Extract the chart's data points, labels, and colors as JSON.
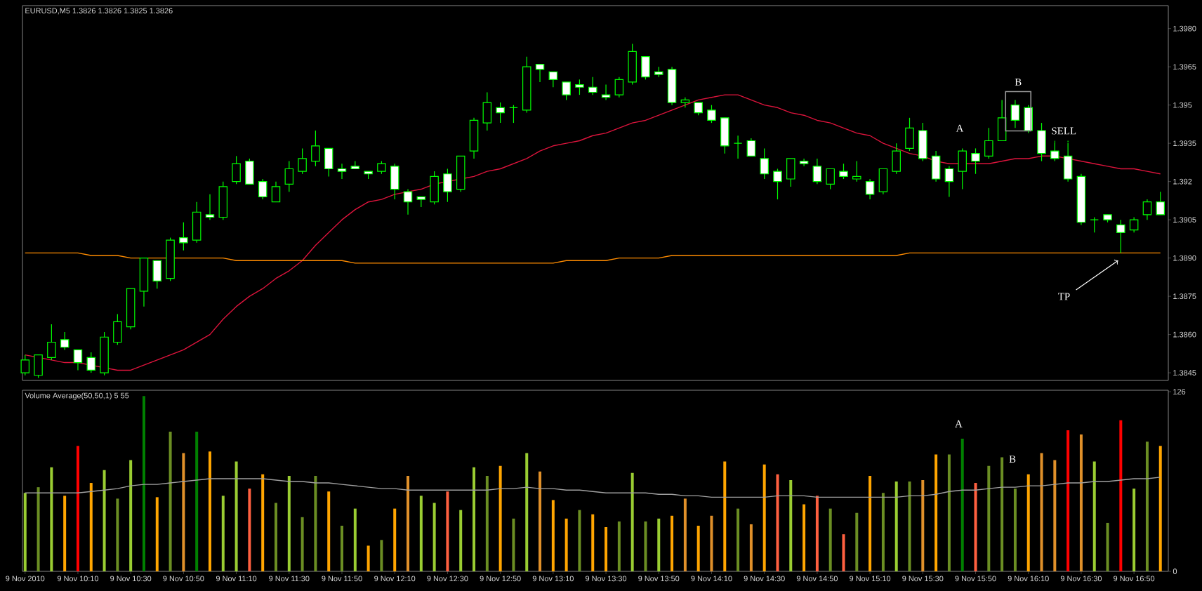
{
  "chart_data": [
    {
      "type": "candlestick",
      "title": "EURUSD,M5 1.3826 1.3826 1.3825 1.3826",
      "x": [
        "2010-11-09T09:50",
        "2010-11-09T09:55",
        "2010-11-09T10:00",
        "2010-11-09T10:05",
        "2010-11-09T10:10",
        "2010-11-09T10:15",
        "2010-11-09T10:20",
        "2010-11-09T10:25",
        "2010-11-09T10:30",
        "2010-11-09T10:35",
        "2010-11-09T10:40",
        "2010-11-09T10:45",
        "2010-11-09T10:50",
        "2010-11-09T10:55",
        "2010-11-09T11:00",
        "2010-11-09T11:05",
        "2010-11-09T11:10",
        "2010-11-09T11:15",
        "2010-11-09T11:20",
        "2010-11-09T11:25",
        "2010-11-09T11:30",
        "2010-11-09T11:35",
        "2010-11-09T11:40",
        "2010-11-09T11:45",
        "2010-11-09T11:50",
        "2010-11-09T11:55",
        "2010-11-09T12:00",
        "2010-11-09T12:05",
        "2010-11-09T12:10",
        "2010-11-09T12:15",
        "2010-11-09T12:20",
        "2010-11-09T12:25",
        "2010-11-09T12:30",
        "2010-11-09T12:35",
        "2010-11-09T12:40",
        "2010-11-09T12:45",
        "2010-11-09T12:50",
        "2010-11-09T12:55",
        "2010-11-09T13:00",
        "2010-11-09T13:05",
        "2010-11-09T13:10",
        "2010-11-09T13:15",
        "2010-11-09T13:20",
        "2010-11-09T13:25",
        "2010-11-09T13:30",
        "2010-11-09T13:35",
        "2010-11-09T13:40",
        "2010-11-09T13:45",
        "2010-11-09T13:50",
        "2010-11-09T13:55",
        "2010-11-09T14:00",
        "2010-11-09T14:05",
        "2010-11-09T14:10",
        "2010-11-09T14:15",
        "2010-11-09T14:20",
        "2010-11-09T14:25",
        "2010-11-09T14:30",
        "2010-11-09T14:35",
        "2010-11-09T14:40",
        "2010-11-09T14:45",
        "2010-11-09T14:50",
        "2010-11-09T14:55",
        "2010-11-09T15:00",
        "2010-11-09T15:05",
        "2010-11-09T15:10",
        "2010-11-09T15:15",
        "2010-11-09T15:20",
        "2010-11-09T15:25",
        "2010-11-09T15:30",
        "2010-11-09T15:35",
        "2010-11-09T15:40",
        "2010-11-09T15:45",
        "2010-11-09T15:50",
        "2010-11-09T15:55",
        "2010-11-09T16:00",
        "2010-11-09T16:05",
        "2010-11-09T16:10",
        "2010-11-09T16:15",
        "2010-11-09T16:20",
        "2010-11-09T16:25",
        "2010-11-09T16:30",
        "2010-11-09T16:35",
        "2010-11-09T16:40",
        "2010-11-09T16:45",
        "2010-11-09T16:50",
        "2010-11-09T16:55",
        "2010-11-09T17:00"
      ],
      "ohlc": [
        [
          1.3845,
          1.3852,
          1.3844,
          1.385
        ],
        [
          1.3844,
          1.3852,
          1.3843,
          1.3852
        ],
        [
          1.3851,
          1.3864,
          1.385,
          1.3857
        ],
        [
          1.3858,
          1.3861,
          1.3854,
          1.3855
        ],
        [
          1.3854,
          1.3854,
          1.3846,
          1.3849
        ],
        [
          1.3851,
          1.3853,
          1.3845,
          1.3846
        ],
        [
          1.3845,
          1.3861,
          1.3844,
          1.3859
        ],
        [
          1.3857,
          1.3868,
          1.3856,
          1.3865
        ],
        [
          1.3863,
          1.3878,
          1.3862,
          1.3878
        ],
        [
          1.3877,
          1.389,
          1.3871,
          1.389
        ],
        [
          1.3889,
          1.3889,
          1.3878,
          1.3881
        ],
        [
          1.3882,
          1.3898,
          1.3881,
          1.3897
        ],
        [
          1.3898,
          1.3904,
          1.3893,
          1.3896
        ],
        [
          1.3897,
          1.3912,
          1.3896,
          1.3908
        ],
        [
          1.3907,
          1.3915,
          1.3905,
          1.3906
        ],
        [
          1.3906,
          1.392,
          1.3905,
          1.3918
        ],
        [
          1.392,
          1.393,
          1.3919,
          1.3927
        ],
        [
          1.3928,
          1.3929,
          1.3919,
          1.3919
        ],
        [
          1.392,
          1.3921,
          1.3913,
          1.3914
        ],
        [
          1.3912,
          1.392,
          1.3912,
          1.3918
        ],
        [
          1.3919,
          1.3928,
          1.3916,
          1.3925
        ],
        [
          1.3924,
          1.3933,
          1.3923,
          1.3929
        ],
        [
          1.3928,
          1.394,
          1.3926,
          1.3934
        ],
        [
          1.3933,
          1.3933,
          1.3922,
          1.3925
        ],
        [
          1.3925,
          1.3927,
          1.3921,
          1.3924
        ],
        [
          1.3926,
          1.3928,
          1.3925,
          1.3925
        ],
        [
          1.3924,
          1.3924,
          1.3921,
          1.3923
        ],
        [
          1.3924,
          1.3928,
          1.3923,
          1.3927
        ],
        [
          1.3926,
          1.3927,
          1.3913,
          1.3917
        ],
        [
          1.3916,
          1.3917,
          1.3907,
          1.3912
        ],
        [
          1.3914,
          1.3914,
          1.391,
          1.3913
        ],
        [
          1.3912,
          1.3924,
          1.3911,
          1.3922
        ],
        [
          1.3923,
          1.3925,
          1.3912,
          1.3916
        ],
        [
          1.3917,
          1.393,
          1.3916,
          1.393
        ],
        [
          1.3932,
          1.3945,
          1.3929,
          1.3944
        ],
        [
          1.3943,
          1.3955,
          1.394,
          1.3951
        ],
        [
          1.3949,
          1.3951,
          1.3943,
          1.3947
        ],
        [
          1.3949,
          1.395,
          1.3943,
          1.3949
        ],
        [
          1.3948,
          1.3969,
          1.3947,
          1.3965
        ],
        [
          1.3966,
          1.3966,
          1.3959,
          1.3964
        ],
        [
          1.3963,
          1.3963,
          1.3957,
          1.396
        ],
        [
          1.3959,
          1.3959,
          1.3952,
          1.3954
        ],
        [
          1.3958,
          1.396,
          1.3954,
          1.3957
        ],
        [
          1.3957,
          1.3961,
          1.3954,
          1.3955
        ],
        [
          1.3954,
          1.3958,
          1.3952,
          1.3953
        ],
        [
          1.3954,
          1.3961,
          1.3953,
          1.396
        ],
        [
          1.3959,
          1.3974,
          1.3958,
          1.3971
        ],
        [
          1.3969,
          1.3969,
          1.396,
          1.3961
        ],
        [
          1.3963,
          1.3965,
          1.3961,
          1.3962
        ],
        [
          1.3964,
          1.3965,
          1.395,
          1.3951
        ],
        [
          1.3951,
          1.3953,
          1.3949,
          1.3952
        ],
        [
          1.3951,
          1.3951,
          1.3946,
          1.3947
        ],
        [
          1.3948,
          1.395,
          1.3943,
          1.3944
        ],
        [
          1.3945,
          1.3945,
          1.3931,
          1.3934
        ],
        [
          1.3935,
          1.3938,
          1.3929,
          1.3935
        ],
        [
          1.3936,
          1.3937,
          1.393,
          1.393
        ],
        [
          1.3929,
          1.3933,
          1.3921,
          1.3923
        ],
        [
          1.3924,
          1.3925,
          1.3913,
          1.392
        ],
        [
          1.3921,
          1.3929,
          1.3918,
          1.3929
        ],
        [
          1.3928,
          1.3929,
          1.3926,
          1.3927
        ],
        [
          1.3926,
          1.3929,
          1.3919,
          1.392
        ],
        [
          1.3919,
          1.3925,
          1.3917,
          1.3925
        ],
        [
          1.3924,
          1.3927,
          1.3921,
          1.3922
        ],
        [
          1.3921,
          1.3928,
          1.392,
          1.3922
        ],
        [
          1.392,
          1.3921,
          1.3913,
          1.3915
        ],
        [
          1.3916,
          1.3925,
          1.3915,
          1.3925
        ],
        [
          1.3924,
          1.3935,
          1.3923,
          1.3932
        ],
        [
          1.3933,
          1.3945,
          1.3932,
          1.3941
        ],
        [
          1.394,
          1.3943,
          1.3928,
          1.3929
        ],
        [
          1.393,
          1.3932,
          1.392,
          1.3921
        ],
        [
          1.3925,
          1.3926,
          1.3914,
          1.392
        ],
        [
          1.3924,
          1.3933,
          1.3917,
          1.3932
        ],
        [
          1.3931,
          1.3933,
          1.3923,
          1.3928
        ],
        [
          1.393,
          1.3941,
          1.3929,
          1.3936
        ],
        [
          1.3936,
          1.3952,
          1.3936,
          1.3945
        ],
        [
          1.395,
          1.3952,
          1.3941,
          1.3944
        ],
        [
          1.3949,
          1.395,
          1.3939,
          1.394
        ],
        [
          1.394,
          1.3943,
          1.3928,
          1.3931
        ],
        [
          1.3932,
          1.3936,
          1.3928,
          1.3929
        ],
        [
          1.393,
          1.3936,
          1.392,
          1.3921
        ],
        [
          1.3922,
          1.3923,
          1.3903,
          1.3904
        ],
        [
          1.3905,
          1.3906,
          1.39,
          1.3905
        ],
        [
          1.3907,
          1.3907,
          1.3904,
          1.3905
        ],
        [
          1.3903,
          1.3905,
          1.3892,
          1.39
        ],
        [
          1.3901,
          1.3906,
          1.39,
          1.3905
        ],
        [
          1.3907,
          1.3913,
          1.3905,
          1.3912
        ],
        [
          1.3912,
          1.3916,
          1.3907,
          1.3907
        ]
      ],
      "color": "#00ff00",
      "series": [
        {
          "type": "line",
          "color": "#dc143c",
          "values": [
            1.3852,
            1.3851,
            1.385,
            1.3849,
            1.3849,
            1.3848,
            1.3847,
            1.3846,
            1.3846,
            1.3848,
            1.385,
            1.3852,
            1.3854,
            1.3857,
            1.386,
            1.3866,
            1.3871,
            1.3875,
            1.3878,
            1.3882,
            1.3885,
            1.3889,
            1.3895,
            1.39,
            1.3905,
            1.3909,
            1.3912,
            1.3913,
            1.3915,
            1.3916,
            1.3917,
            1.3919,
            1.392,
            1.3921,
            1.3922,
            1.3924,
            1.3925,
            1.3927,
            1.3929,
            1.3932,
            1.3934,
            1.3935,
            1.3936,
            1.3938,
            1.3939,
            1.3941,
            1.3943,
            1.3944,
            1.3946,
            1.3948,
            1.395,
            1.3952,
            1.3953,
            1.3954,
            1.3954,
            1.3952,
            1.395,
            1.3949,
            1.3947,
            1.3946,
            1.3944,
            1.3943,
            1.3941,
            1.3939,
            1.3938,
            1.3935,
            1.3933,
            1.3931,
            1.393,
            1.3928,
            1.3927,
            1.3927,
            1.3927,
            1.3927,
            1.3928,
            1.3929,
            1.3929,
            1.393,
            1.393,
            1.3929,
            1.3928,
            1.3927,
            1.3926,
            1.3925,
            1.3925,
            1.3924,
            1.3923
          ]
        },
        {
          "type": "line",
          "color": "#ff8c00",
          "values": [
            1.3892,
            1.3892,
            1.3892,
            1.3892,
            1.3892,
            1.3891,
            1.3891,
            1.3891,
            1.389,
            1.389,
            1.389,
            1.389,
            1.389,
            1.389,
            1.389,
            1.389,
            1.3889,
            1.3889,
            1.3889,
            1.3889,
            1.3889,
            1.3889,
            1.3889,
            1.3889,
            1.3889,
            1.3888,
            1.3888,
            1.3888,
            1.3888,
            1.3888,
            1.3888,
            1.3888,
            1.3888,
            1.3888,
            1.3888,
            1.3888,
            1.3888,
            1.3888,
            1.3888,
            1.3888,
            1.3888,
            1.3889,
            1.3889,
            1.3889,
            1.3889,
            1.389,
            1.389,
            1.389,
            1.389,
            1.3891,
            1.3891,
            1.3891,
            1.3891,
            1.3891,
            1.3891,
            1.3891,
            1.3891,
            1.3891,
            1.3891,
            1.3891,
            1.3891,
            1.3891,
            1.3891,
            1.3891,
            1.3891,
            1.3891,
            1.3891,
            1.3892,
            1.3892,
            1.3892,
            1.3892,
            1.3892,
            1.3892,
            1.3892,
            1.3892,
            1.3892,
            1.3892,
            1.3892,
            1.3892,
            1.3892,
            1.3892,
            1.3892,
            1.3892,
            1.3892,
            1.3892,
            1.3892,
            1.3892
          ]
        }
      ],
      "xlim": [
        "2010-11-09T09:49",
        "2010-11-09T17:03"
      ],
      "ylim": [
        1.3842,
        1.3989
      ],
      "yticks": [
        {
          "value": 1.398,
          "label": "1.3980"
        },
        1.3965,
        1.395,
        1.3935,
        1.392,
        1.3905,
        {
          "value": 1.389,
          "label": "1.3890"
        },
        1.3875,
        {
          "value": 1.386,
          "label": "1.3860"
        },
        1.3845
      ],
      "tick_labels": "y",
      "annotations": [
        "A",
        "B",
        {
          "text": "SELL",
          "x": "2010-11-09T16:23",
          "y": 1.3937
        },
        "TP"
      ]
    },
    {
      "type": "bar",
      "title": "Volume Average(50,50,1) 5 55",
      "x": [
        "2010-11-09T09:50",
        "2010-11-09T09:55",
        "2010-11-09T10:00",
        "2010-11-09T10:05",
        "2010-11-09T10:10",
        "2010-11-09T10:15",
        "2010-11-09T10:20",
        "2010-11-09T10:25",
        "2010-11-09T10:30",
        "2010-11-09T10:35",
        "2010-11-09T10:40",
        "2010-11-09T10:45",
        "2010-11-09T10:50",
        "2010-11-09T10:55",
        "2010-11-09T11:00",
        "2010-11-09T11:05",
        "2010-11-09T11:10",
        "2010-11-09T11:15",
        "2010-11-09T11:20",
        "2010-11-09T11:25",
        "2010-11-09T11:30",
        "2010-11-09T11:35",
        "2010-11-09T11:40",
        "2010-11-09T11:45",
        "2010-11-09T11:50",
        "2010-11-09T11:55",
        "2010-11-09T12:00",
        "2010-11-09T12:05",
        "2010-11-09T12:10",
        "2010-11-09T12:15",
        "2010-11-09T12:20",
        "2010-11-09T12:25",
        "2010-11-09T12:30",
        "2010-11-09T12:35",
        "2010-11-09T12:40",
        "2010-11-09T12:45",
        "2010-11-09T12:50",
        "2010-11-09T12:55",
        "2010-11-09T13:00",
        "2010-11-09T13:05",
        "2010-11-09T13:10",
        "2010-11-09T13:15",
        "2010-11-09T13:20",
        "2010-11-09T13:25",
        "2010-11-09T13:30",
        "2010-11-09T13:35",
        "2010-11-09T13:40",
        "2010-11-09T13:45",
        "2010-11-09T13:50",
        "2010-11-09T13:55",
        "2010-11-09T14:00",
        "2010-11-09T14:05",
        "2010-11-09T14:10",
        "2010-11-09T14:15",
        "2010-11-09T14:20",
        "2010-11-09T14:25",
        "2010-11-09T14:30",
        "2010-11-09T14:35",
        "2010-11-09T14:40",
        "2010-11-09T14:45",
        "2010-11-09T14:50",
        "2010-11-09T14:55",
        "2010-11-09T15:00",
        "2010-11-09T15:05",
        "2010-11-09T15:10",
        "2010-11-09T15:15",
        "2010-11-09T15:20",
        "2010-11-09T15:25",
        "2010-11-09T15:30",
        "2010-11-09T15:35",
        "2010-11-09T15:40",
        "2010-11-09T15:45",
        "2010-11-09T15:50",
        "2010-11-09T15:55",
        "2010-11-09T16:00",
        "2010-11-09T16:05",
        "2010-11-09T16:10",
        "2010-11-09T16:15",
        "2010-11-09T16:20",
        "2010-11-09T16:25",
        "2010-11-09T16:30",
        "2010-11-09T16:35",
        "2010-11-09T16:40",
        "2010-11-09T16:45",
        "2010-11-09T16:50",
        "2010-11-09T16:55",
        "2010-11-09T17:00"
      ],
      "series": [
        {
          "values": [
            55,
            59,
            73,
            53,
            88,
            62,
            71,
            51,
            78,
            123,
            52,
            98,
            83,
            98,
            84,
            53,
            77,
            58,
            68,
            48,
            67,
            38,
            67,
            56,
            32,
            44,
            18,
            22,
            44,
            67,
            53,
            48,
            56,
            43,
            73,
            67,
            74,
            37,
            83,
            70,
            50,
            37,
            43,
            40,
            31,
            35,
            69,
            35,
            37,
            39,
            51,
            32,
            39,
            77,
            44,
            33,
            75,
            68,
            64,
            47,
            53,
            44,
            26,
            41,
            67,
            55,
            63,
            63,
            64,
            82,
            82,
            93,
            62,
            74,
            80,
            58,
            68,
            83,
            78,
            99,
            96,
            77,
            34,
            106,
            58,
            91,
            88
          ],
          "colors": [
            "#9acd32",
            "#6b8e23",
            "#9acd32",
            "#ffa500",
            "#ff0000",
            "#ffa500",
            "#9acd32",
            "#6b8e23",
            "#9acd32",
            "#008000",
            "#ffa500",
            "#6b8e23",
            "#e0902a",
            "#008000",
            "#ffa500",
            "#9acd32",
            "#9acd32",
            "#ff6040",
            "#ffa500",
            "#6b8e23",
            "#9acd32",
            "#6b8e23",
            "#6b8e23",
            "#ffa500",
            "#6b8e23",
            "#9acd32",
            "#ffa500",
            "#6b8e23",
            "#ffa500",
            "#e0902a",
            "#9acd32",
            "#9acd32",
            "#ff6040",
            "#9acd32",
            "#9acd32",
            "#6b8e23",
            "#ffa500",
            "#6b8e23",
            "#9acd32",
            "#e0902a",
            "#ffa500",
            "#ffa500",
            "#6b8e23",
            "#ffa500",
            "#ffa500",
            "#6b8e23",
            "#9acd32",
            "#6b8e23",
            "#9acd32",
            "#ffa500",
            "#e0902a",
            "#ffa500",
            "#e0902a",
            "#ffa500",
            "#6b8e23",
            "#e0902a",
            "#ffa500",
            "#ff6040",
            "#9acd32",
            "#ffa500",
            "#ff6040",
            "#6b8e23",
            "#ff6040",
            "#6b8e23",
            "#ffa500",
            "#6b8e23",
            "#9acd32",
            "#6b8e23",
            "#e0902a",
            "#ffa500",
            "#6b8e23",
            "#008000",
            "#ff6040",
            "#6b8e23",
            "#6b8e23",
            "#6b8e23",
            "#ffa500",
            "#e0902a",
            "#e0902a",
            "#ff0000",
            "#e0902a",
            "#9acd32",
            "#6b8e23",
            "#ff0000",
            "#9acd32",
            "#6b8e23",
            "#ffa500"
          ]
        },
        {
          "type": "line",
          "color": "#a0a0a0",
          "values": [
            55,
            55,
            55,
            55,
            55,
            56,
            57,
            58,
            60,
            61,
            61,
            62,
            63,
            64,
            65,
            65,
            65,
            65,
            65,
            64,
            63,
            63,
            62,
            62,
            61,
            60,
            59,
            58,
            58,
            57,
            57,
            57,
            57,
            57,
            57,
            57,
            58,
            58,
            59,
            58,
            58,
            57,
            57,
            56,
            55,
            55,
            55,
            55,
            54,
            54,
            53,
            53,
            52,
            52,
            52,
            52,
            52,
            53,
            53,
            53,
            52,
            52,
            52,
            52,
            52,
            52,
            52,
            53,
            53,
            54,
            56,
            57,
            57,
            58,
            59,
            59,
            60,
            60,
            61,
            62,
            62,
            63,
            63,
            64,
            65,
            65,
            66
          ]
        }
      ],
      "xlim": [
        "2010-11-09T09:49",
        "2010-11-09T17:03"
      ],
      "ylim": [
        0,
        127
      ],
      "xticks": [
        {
          "value": "2010-11-09T09:50",
          "label": "9 Nov 2010"
        },
        {
          "value": "2010-11-09T10:10",
          "label": "9 Nov 10:10"
        },
        {
          "value": "2010-11-09T10:30",
          "label": "9 Nov 10:30"
        },
        {
          "value": "2010-11-09T10:50",
          "label": "9 Nov 10:50"
        },
        {
          "value": "2010-11-09T11:10",
          "label": "9 Nov 11:10"
        },
        {
          "value": "2010-11-09T11:30",
          "label": "9 Nov 11:30"
        },
        {
          "value": "2010-11-09T11:50",
          "label": "9 Nov 11:50"
        },
        {
          "value": "2010-11-09T12:10",
          "label": "9 Nov 12:10"
        },
        {
          "value": "2010-11-09T12:30",
          "label": "9 Nov 12:30"
        },
        {
          "value": "2010-11-09T12:50",
          "label": "9 Nov 12:50"
        },
        {
          "value": "2010-11-09T13:10",
          "label": "9 Nov 13:10"
        },
        {
          "value": "2010-11-09T13:30",
          "label": "9 Nov 13:30"
        },
        {
          "value": "2010-11-09T13:50",
          "label": "9 Nov 13:50"
        },
        {
          "value": "2010-11-09T14:10",
          "label": "9 Nov 14:10"
        },
        {
          "value": "2010-11-09T14:30",
          "label": "9 Nov 14:30"
        },
        {
          "value": "2010-11-09T14:50",
          "label": "9 Nov 14:50"
        },
        {
          "value": "2010-11-09T15:10",
          "label": "9 Nov 15:10"
        },
        {
          "value": "2010-11-09T15:30",
          "label": "9 Nov 15:30"
        },
        {
          "value": "2010-11-09T15:50",
          "label": "9 Nov 15:50"
        },
        {
          "value": "2010-11-09T16:10",
          "label": "9 Nov 16:10"
        },
        {
          "value": "2010-11-09T16:30",
          "label": "9 Nov 16:30"
        },
        {
          "value": "2010-11-09T16:50",
          "label": "9 Nov 16:50"
        }
      ],
      "yticks": [
        0,
        126
      ],
      "annotations": [
        "A",
        "B"
      ]
    }
  ]
}
